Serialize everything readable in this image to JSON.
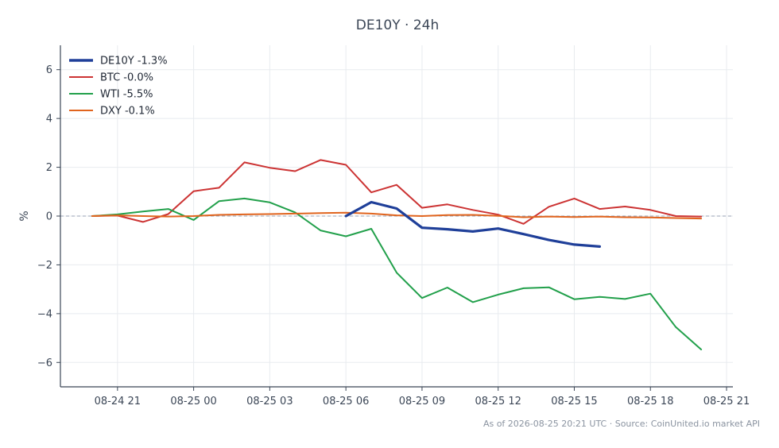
{
  "chart_data": {
    "type": "line",
    "title": "DE10Y · 24h",
    "xlabel": "",
    "ylabel": "%",
    "ylim": [
      -7,
      7
    ],
    "yticks": [
      -6,
      -4,
      -2,
      0,
      2,
      4,
      6
    ],
    "ytick_labels": [
      "−6",
      "−4",
      "−2",
      "0",
      "2",
      "4",
      "6"
    ],
    "xlim": [
      "08-24 18:45",
      "08-25 21:15"
    ],
    "xticks": [
      "08-24 21:00",
      "08-25 00:00",
      "08-25 03:00",
      "08-25 06:00",
      "08-25 09:00",
      "08-25 12:00",
      "08-25 15:00",
      "08-25 18:00",
      "08-25 21:00"
    ],
    "xtick_labels": [
      "08-24 21",
      "08-25 00",
      "08-25 03",
      "08-25 06",
      "08-25 09",
      "08-25 12",
      "08-25 15",
      "08-25 18",
      "08-25 21"
    ],
    "grid": true,
    "zero_line": true,
    "legend": "top-left",
    "series": [
      {
        "name": "DE10Y -1.3%",
        "color": "#1f3f99",
        "x": [
          "08-25 06:00",
          "08-25 07:00",
          "08-25 08:00",
          "08-25 09:00",
          "08-25 10:00",
          "08-25 11:00",
          "08-25 12:00",
          "08-25 13:00",
          "08-25 14:00",
          "08-25 15:00",
          "08-25 16:00"
        ],
        "y": [
          0.0,
          0.57,
          0.31,
          -0.48,
          -0.54,
          -0.63,
          -0.51,
          -0.74,
          -0.98,
          -1.17,
          -1.25
        ]
      },
      {
        "name": "BTC -0.0%",
        "color": "#cc3333",
        "x": [
          "08-24 20:00",
          "08-24 21:00",
          "08-24 22:00",
          "08-24 23:00",
          "08-25 00:00",
          "08-25 01:00",
          "08-25 02:00",
          "08-25 03:00",
          "08-25 04:00",
          "08-25 05:00",
          "08-25 06:00",
          "08-25 07:00",
          "08-25 08:00",
          "08-25 09:00",
          "08-25 10:00",
          "08-25 11:00",
          "08-25 12:00",
          "08-25 13:00",
          "08-25 14:00",
          "08-25 15:00",
          "08-25 16:00",
          "08-25 17:00",
          "08-25 18:00",
          "08-25 19:00",
          "08-25 20:00"
        ],
        "y": [
          0.0,
          0.02,
          -0.24,
          0.08,
          1.02,
          1.16,
          2.2,
          1.98,
          1.84,
          2.3,
          2.1,
          0.97,
          1.28,
          0.34,
          0.48,
          0.25,
          0.06,
          -0.32,
          0.38,
          0.72,
          0.29,
          0.39,
          0.25,
          0.0,
          -0.02
        ]
      },
      {
        "name": "WTI -5.5%",
        "color": "#22a04b",
        "x": [
          "08-24 20:00",
          "08-24 21:00",
          "08-24 22:00",
          "08-24 23:00",
          "08-25 00:00",
          "08-25 01:00",
          "08-25 02:00",
          "08-25 03:00",
          "08-25 04:00",
          "08-25 05:00",
          "08-25 06:00",
          "08-25 07:00",
          "08-25 08:00",
          "08-25 09:00",
          "08-25 10:00",
          "08-25 11:00",
          "08-25 12:00",
          "08-25 13:00",
          "08-25 14:00",
          "08-25 15:00",
          "08-25 16:00",
          "08-25 17:00",
          "08-25 18:00",
          "08-25 19:00",
          "08-25 20:00"
        ],
        "y": [
          0.0,
          0.07,
          0.19,
          0.29,
          -0.16,
          0.61,
          0.72,
          0.56,
          0.15,
          -0.59,
          -0.83,
          -0.52,
          -2.32,
          -3.36,
          -2.93,
          -3.53,
          -3.22,
          -2.96,
          -2.92,
          -3.41,
          -3.31,
          -3.4,
          -3.18,
          -4.55,
          -5.47
        ]
      },
      {
        "name": "DXY -0.1%",
        "color": "#e0641e",
        "x": [
          "08-24 20:00",
          "08-24 21:00",
          "08-24 22:00",
          "08-24 23:00",
          "08-25 00:00",
          "08-25 01:00",
          "08-25 02:00",
          "08-25 03:00",
          "08-25 04:00",
          "08-25 05:00",
          "08-25 06:00",
          "08-25 07:00",
          "08-25 08:00",
          "08-25 09:00",
          "08-25 10:00",
          "08-25 11:00",
          "08-25 12:00",
          "08-25 13:00",
          "08-25 14:00",
          "08-25 15:00",
          "08-25 16:00",
          "08-25 17:00",
          "08-25 18:00",
          "08-25 19:00",
          "08-25 20:00"
        ],
        "y": [
          0.0,
          0.03,
          0.0,
          -0.02,
          0.0,
          0.05,
          0.07,
          0.08,
          0.1,
          0.12,
          0.14,
          0.1,
          0.03,
          0.0,
          0.04,
          0.05,
          0.01,
          -0.05,
          -0.02,
          -0.04,
          -0.02,
          -0.05,
          -0.06,
          -0.08,
          -0.1
        ]
      }
    ]
  },
  "footer": {
    "text": "As of 2026-08-25 20:21 UTC · Source: CoinUnited.io market API"
  }
}
